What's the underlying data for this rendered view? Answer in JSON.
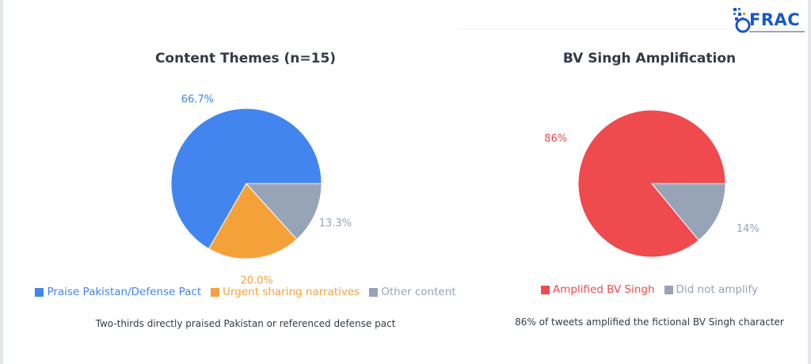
{
  "logo": {
    "text": "FRAC"
  },
  "chart_data": [
    {
      "type": "pie",
      "title": "Content Themes (n=15)",
      "categories": [
        "Praise Pakistan/Defense Pact",
        "Urgent sharing narratives",
        "Other content"
      ],
      "values": [
        66.7,
        20.0,
        13.3
      ],
      "value_labels": [
        "66.7%",
        "20.0%",
        "13.3%"
      ],
      "colors": [
        "#4285ee",
        "#f5a13a",
        "#97a3b6"
      ],
      "legend": "bottom",
      "caption": "Two-thirds directly praised Pakistan or referenced defense pact"
    },
    {
      "type": "pie",
      "title": "BV Singh Amplification",
      "categories": [
        "Amplified BV Singh",
        "Did not amplify"
      ],
      "values": [
        86,
        14
      ],
      "value_labels": [
        "86%",
        "14%"
      ],
      "colors": [
        "#ef4a4d",
        "#97a3b6"
      ],
      "legend": "bottom",
      "caption": "86% of tweets amplified the fictional BV Singh character"
    }
  ]
}
